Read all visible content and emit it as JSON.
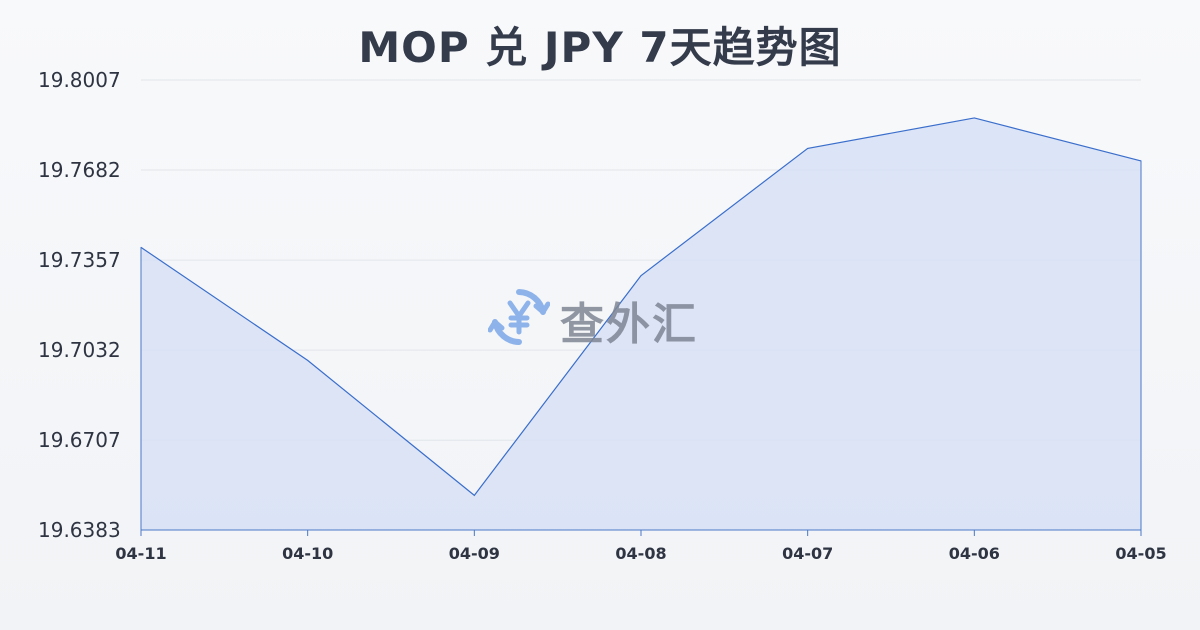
{
  "chart_data": {
    "type": "area",
    "title": "MOP 兑 JPY 7天趋势图",
    "categories": [
      "04-11",
      "04-10",
      "04-09",
      "04-08",
      "04-07",
      "04-06",
      "04-05"
    ],
    "series": [
      {
        "values": [
          19.7403,
          19.6995,
          19.6508,
          19.7301,
          19.776,
          19.787,
          19.7715
        ]
      }
    ],
    "yticks": [
      "19.8007",
      "19.7682",
      "19.7357",
      "19.7032",
      "19.6707",
      "19.6383"
    ],
    "ylim": [
      19.6383,
      19.8007
    ],
    "grid": true,
    "colors": {
      "line": "#3a6ecb",
      "fill": "#d7e1f6"
    }
  },
  "watermark": {
    "text": "查外汇",
    "icon": "yen-exchange-icon"
  }
}
